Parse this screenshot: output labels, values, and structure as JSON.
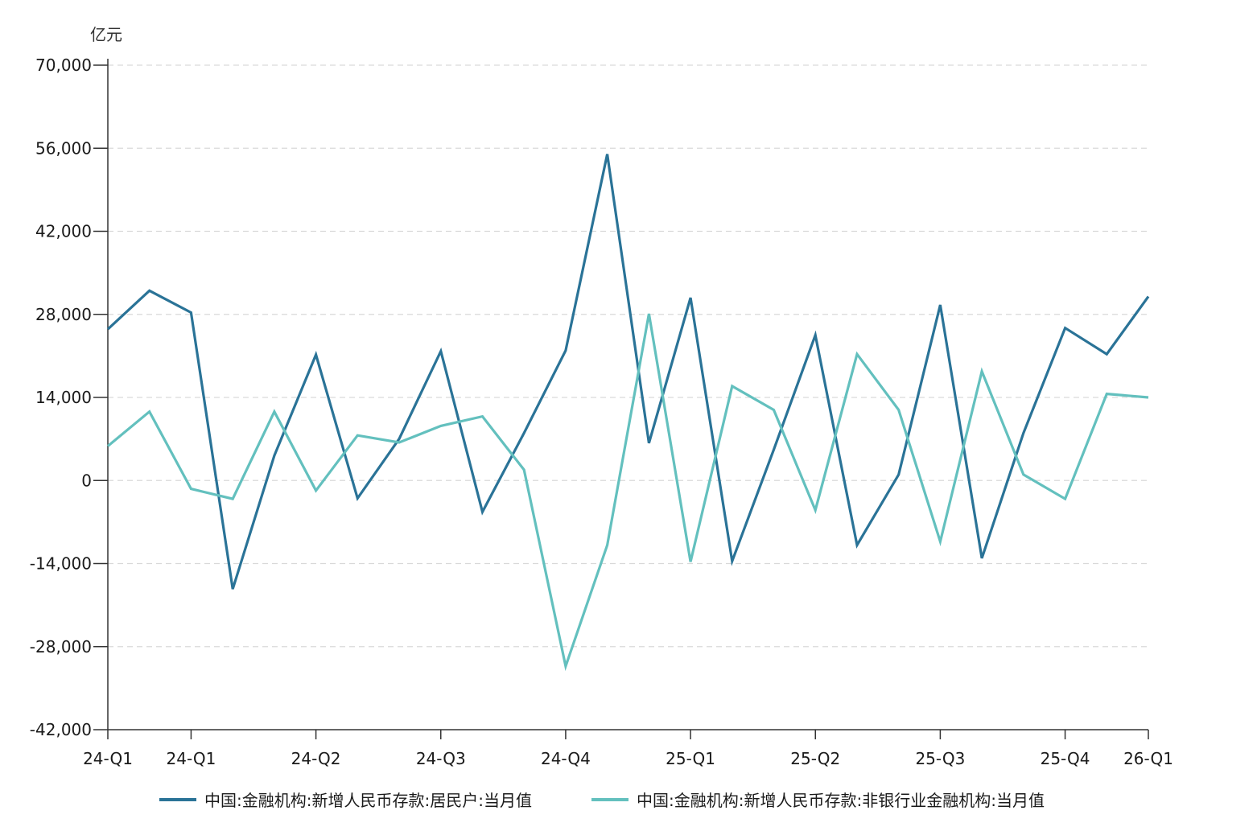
{
  "chart_data": {
    "type": "line",
    "unit": "亿元",
    "yticks": [
      70000,
      56000,
      42000,
      28000,
      14000,
      0,
      -14000,
      -28000,
      -42000
    ],
    "ytick_labels": [
      "70,000",
      "56,000",
      "42,000",
      "28,000",
      "14,000",
      "0",
      "-14,000",
      "-28,000",
      "-42,000"
    ],
    "ylim": [
      -42000,
      70000
    ],
    "x_tick_labels": [
      "24-Q1",
      "24-Q1",
      "24-Q2",
      "24-Q3",
      "24-Q4",
      "25-Q1",
      "25-Q2",
      "25-Q3",
      "25-Q4",
      "26-Q1"
    ],
    "x_tick_indices": [
      0,
      2,
      5,
      8,
      11,
      14,
      17,
      20,
      23,
      25
    ],
    "x_count": 26,
    "grid": "horizontal dashed",
    "legend_position": "bottom",
    "series": [
      {
        "name": "中国:金融机构:新增人民币存款:居民户:当月值",
        "color": "#2a7397",
        "values": [
          25500,
          32000,
          28300,
          -18300,
          4200,
          21200,
          -3000,
          7000,
          21800,
          -5300,
          8000,
          21900,
          55000,
          6300,
          30800,
          -13600,
          5200,
          24500,
          -10900,
          1000,
          29600,
          -13100,
          8000,
          25700,
          21300,
          31000
        ]
      },
      {
        "name": "中国:金融机构:新增人民币存款:非银行业金融机构:当月值",
        "color": "#63c0be",
        "values": [
          5800,
          11600,
          -1400,
          -3100,
          11600,
          -1700,
          7600,
          6400,
          9200,
          10800,
          1800,
          -31300,
          -10900,
          28100,
          -13700,
          15900,
          11900,
          -5000,
          21300,
          11900,
          -10300,
          18400,
          1000,
          -3100,
          14600,
          14000
        ]
      }
    ]
  }
}
